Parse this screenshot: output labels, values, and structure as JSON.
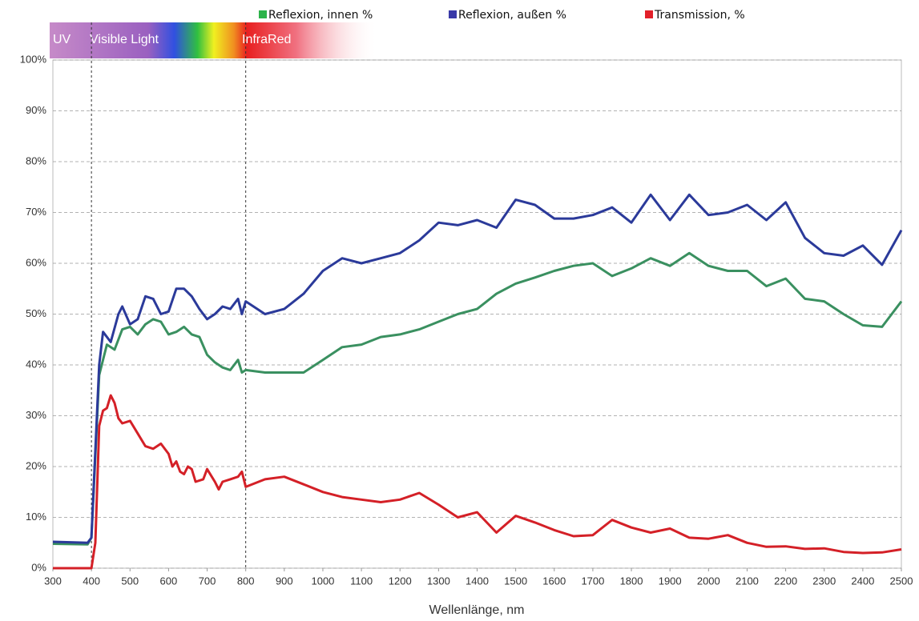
{
  "chart_data": {
    "type": "line",
    "x_label": "Wellenlänge, nm",
    "spectrum_labels": [
      "UV",
      "Visible Light",
      "InfraRed"
    ],
    "reference_lines_x": [
      400,
      800
    ],
    "xlim": [
      300,
      2500
    ],
    "xticks": [
      300,
      400,
      500,
      600,
      700,
      800,
      900,
      1000,
      1100,
      1200,
      1300,
      1400,
      1500,
      1600,
      1700,
      1800,
      1900,
      2000,
      2100,
      2200,
      2300,
      2400,
      2500
    ],
    "ylim": [
      0,
      100
    ],
    "yticks": [
      {
        "value": 0,
        "label": "0%"
      },
      {
        "value": 10,
        "label": "10%"
      },
      {
        "value": 20,
        "label": "20%"
      },
      {
        "value": 30,
        "label": "30%"
      },
      {
        "value": 40,
        "label": "40%"
      },
      {
        "value": 50,
        "label": "50%"
      },
      {
        "value": 60,
        "label": "60%"
      },
      {
        "value": 70,
        "label": "70%"
      },
      {
        "value": 80,
        "label": "80%"
      },
      {
        "value": 90,
        "label": "90%"
      },
      {
        "value": 100,
        "label": "100%"
      }
    ],
    "grid": true,
    "series": [
      {
        "name": "Reflexion, innen %",
        "color": "#3a9060",
        "legend_color": "#2db34a",
        "x": [
          300,
          390,
          400,
          420,
          440,
          460,
          480,
          500,
          520,
          540,
          560,
          580,
          600,
          620,
          640,
          660,
          680,
          700,
          720,
          740,
          760,
          780,
          790,
          800,
          850,
          900,
          950,
          1000,
          1050,
          1100,
          1150,
          1200,
          1250,
          1300,
          1350,
          1400,
          1450,
          1500,
          1550,
          1600,
          1650,
          1700,
          1750,
          1800,
          1850,
          1900,
          1950,
          2000,
          2050,
          2100,
          2150,
          2200,
          2250,
          2300,
          2350,
          2400,
          2450,
          2500
        ],
        "values": [
          4.8,
          4.7,
          6,
          38,
          44,
          43,
          47,
          47.5,
          46,
          48,
          49,
          48.5,
          46,
          46.5,
          47.5,
          46,
          45.5,
          42,
          40.5,
          39.5,
          39,
          41,
          38.5,
          39,
          38.5,
          38.5,
          38.5,
          41,
          43.5,
          44,
          45.5,
          46,
          47,
          48.5,
          50,
          51,
          54,
          56,
          57.2,
          58.5,
          59.5,
          60,
          57.5,
          59,
          61,
          59.5,
          62,
          59.5,
          58.5,
          58.5,
          55.5,
          57,
          53,
          52.5,
          50,
          47.8,
          47.5,
          52.5
        ]
      },
      {
        "name": "Reflexion, außen %",
        "color": "#2b3a9a",
        "legend_color": "#3a3aa8",
        "x": [
          300,
          390,
          400,
          420,
          430,
          450,
          470,
          480,
          500,
          520,
          540,
          560,
          580,
          600,
          620,
          640,
          660,
          680,
          700,
          720,
          740,
          760,
          780,
          790,
          800,
          850,
          900,
          950,
          1000,
          1050,
          1100,
          1150,
          1200,
          1250,
          1300,
          1350,
          1400,
          1450,
          1500,
          1550,
          1600,
          1650,
          1700,
          1750,
          1800,
          1850,
          1900,
          1950,
          2000,
          2050,
          2100,
          2150,
          2200,
          2250,
          2300,
          2350,
          2400,
          2450,
          2500
        ],
        "values": [
          5.2,
          5,
          6,
          40,
          46.5,
          44.5,
          50,
          51.5,
          48,
          49,
          53.5,
          53,
          50,
          50.5,
          55,
          55,
          53.5,
          51,
          49,
          50,
          51.5,
          51,
          53,
          50,
          52.5,
          50,
          51,
          54,
          58.5,
          61,
          60,
          61,
          62,
          64.5,
          68,
          67.5,
          68.5,
          67,
          72.5,
          71.5,
          68.8,
          68.8,
          69.5,
          71,
          68,
          73.5,
          68.5,
          73.5,
          69.5,
          70,
          71.5,
          68.5,
          72,
          65,
          62,
          61.5,
          63.5,
          59.7,
          66.5
        ]
      },
      {
        "name": "Transmission, %",
        "color": "#d42027",
        "legend_color": "#e2202a",
        "x": [
          300,
          400,
          410,
          420,
          430,
          440,
          450,
          460,
          470,
          480,
          500,
          520,
          540,
          560,
          580,
          600,
          610,
          620,
          630,
          640,
          650,
          660,
          670,
          690,
          700,
          720,
          730,
          740,
          760,
          780,
          790,
          800,
          850,
          900,
          950,
          1000,
          1050,
          1100,
          1150,
          1200,
          1250,
          1300,
          1350,
          1400,
          1450,
          1500,
          1550,
          1600,
          1650,
          1700,
          1750,
          1800,
          1850,
          1900,
          1950,
          2000,
          2050,
          2100,
          2150,
          2200,
          2250,
          2300,
          2350,
          2400,
          2450,
          2500
        ],
        "values": [
          0,
          0,
          5,
          28,
          31,
          31.5,
          34,
          32.5,
          29.5,
          28.5,
          29,
          26.5,
          24,
          23.5,
          24.5,
          22.5,
          20,
          21,
          19,
          18.5,
          20,
          19.5,
          17,
          17.5,
          19.5,
          17,
          15.5,
          17,
          17.5,
          18,
          19,
          16,
          17.5,
          18,
          16.5,
          15,
          14,
          13.5,
          13,
          13.5,
          14.8,
          12.5,
          10,
          11,
          7,
          10.3,
          9,
          7.5,
          6.3,
          6.5,
          9.5,
          8,
          7,
          7.8,
          6,
          5.8,
          6.5,
          5,
          4.2,
          4.3,
          3.8,
          3.9,
          3.2,
          3,
          3.1,
          3.7
        ]
      }
    ]
  }
}
